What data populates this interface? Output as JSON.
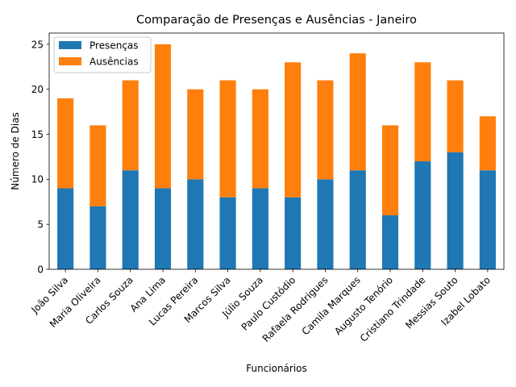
{
  "chart_data": {
    "type": "bar",
    "stacked": true,
    "title": "Comparação de Presenças e Ausências - Janeiro",
    "xlabel": "Funcionários",
    "ylabel": "Número de Dias",
    "categories": [
      "João Silva",
      "Maria Oliveira",
      "Carlos Souza",
      "Ana Lima",
      "Lucas Pereira",
      "Marcos Silva",
      "Júlio Souza",
      "Paulo Custódio",
      "Rafaela Rodrigues",
      "Camila Marques",
      "Augusto Tenório",
      "Cristiano Trindade",
      "Messias Souto",
      "Izabel Lobato"
    ],
    "series": [
      {
        "name": "Presenças",
        "color": "#1f77b4",
        "values": [
          9,
          7,
          11,
          9,
          10,
          8,
          9,
          8,
          10,
          11,
          6,
          12,
          13,
          11
        ]
      },
      {
        "name": "Ausências",
        "color": "#ff7f0e",
        "values": [
          10,
          9,
          10,
          16,
          10,
          13,
          11,
          15,
          11,
          13,
          10,
          11,
          8,
          6
        ]
      }
    ],
    "ylim": [
      0,
      26.25
    ],
    "yticks": [
      0,
      5,
      10,
      15,
      20,
      25
    ],
    "grid": false,
    "legend_position": "top-left"
  }
}
